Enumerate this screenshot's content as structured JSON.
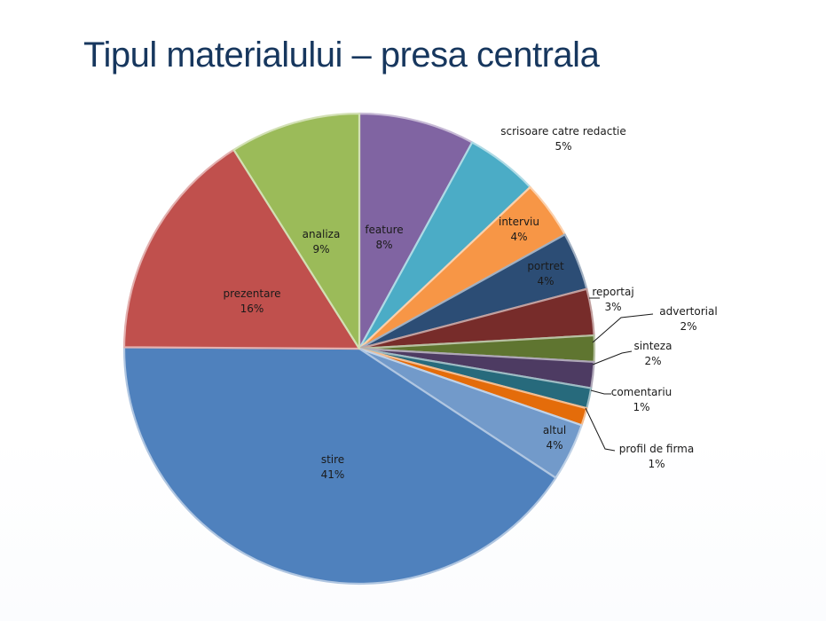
{
  "slide": {
    "title": "Tipul materialului – presa centrala"
  },
  "chart_data": {
    "type": "pie",
    "title": "Tipul materialului – presa centrala",
    "start_angle_deg": 90,
    "direction": "clockwise",
    "slices": [
      {
        "label": "feature",
        "percent_label": "8%",
        "value": 8,
        "color": "#8064a2",
        "label_position": "inside"
      },
      {
        "label": "scrisoare catre redactie",
        "percent_label": "5%",
        "value": 5,
        "color": "#4bacc6",
        "label_position": "outside"
      },
      {
        "label": "interviu",
        "percent_label": "4%",
        "value": 4,
        "color": "#f79646",
        "label_position": "inside"
      },
      {
        "label": "portret",
        "percent_label": "4%",
        "value": 4,
        "color": "#2c4d75",
        "label_position": "inside"
      },
      {
        "label": "reportaj",
        "percent_label": "3%",
        "value": 3.2,
        "color": "#772c2a",
        "label_position": "outside"
      },
      {
        "label": "advertorial",
        "percent_label": "2%",
        "value": 1.8,
        "color": "#5f7530",
        "label_position": "outside"
      },
      {
        "label": "sinteza",
        "percent_label": "2%",
        "value": 1.8,
        "color": "#4d3b62",
        "label_position": "outside"
      },
      {
        "label": "comentariu",
        "percent_label": "1%",
        "value": 1.4,
        "color": "#276a7c",
        "label_position": "outside"
      },
      {
        "label": "profil de firma",
        "percent_label": "1%",
        "value": 1.2,
        "color": "#e46c0a",
        "label_position": "outside"
      },
      {
        "label": "altul",
        "percent_label": "4%",
        "value": 4,
        "color": "#729aca",
        "label_position": "inside"
      },
      {
        "label": "stire",
        "percent_label": "41%",
        "value": 41,
        "color": "#4f81bd",
        "label_position": "inside"
      },
      {
        "label": "prezentare",
        "percent_label": "16%",
        "value": 16,
        "color": "#c0504d",
        "label_position": "inside"
      },
      {
        "label": "analiza",
        "percent_label": "9%",
        "value": 9,
        "color": "#9bbb59",
        "label_position": "inside"
      }
    ]
  }
}
